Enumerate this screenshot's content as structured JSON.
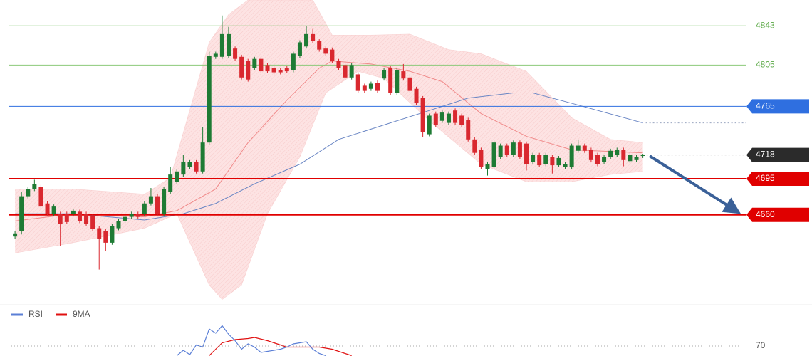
{
  "chart_data": [
    {
      "type": "candlestick",
      "xlim": [
        -1,
        113
      ],
      "ylim": [
        4575,
        4868
      ],
      "up_color": "#1e7b34",
      "down_color": "#d9282f",
      "ohlc": [
        [
          4639,
          4644,
          4637,
          4642
        ],
        [
          4644,
          4682,
          4641,
          4678
        ],
        [
          4678,
          4687,
          4676,
          4685
        ],
        [
          4685,
          4694,
          4683,
          4690
        ],
        [
          4687,
          4689,
          4666,
          4668
        ],
        [
          4671,
          4673,
          4659,
          4661
        ],
        [
          4661,
          4670,
          4659,
          4668
        ],
        [
          4661,
          4663,
          4630,
          4651
        ],
        [
          4661,
          4663,
          4651,
          4653
        ],
        [
          4661,
          4666,
          4659,
          4664
        ],
        [
          4663,
          4665,
          4652,
          4654
        ],
        [
          4661,
          4663,
          4649,
          4651
        ],
        [
          4659,
          4661,
          4644,
          4646
        ],
        [
          4647,
          4649,
          4607,
          4637
        ],
        [
          4644,
          4646,
          4625,
          4633
        ],
        [
          4633,
          4651,
          4631,
          4649
        ],
        [
          4647,
          4656,
          4645,
          4654
        ],
        [
          4654,
          4660,
          4652,
          4658
        ],
        [
          4658,
          4663,
          4656,
          4661
        ],
        [
          4661,
          4663,
          4656,
          4658
        ],
        [
          4661,
          4673,
          4659,
          4671
        ],
        [
          4671,
          4686,
          4669,
          4678
        ],
        [
          4678,
          4680,
          4659,
          4661
        ],
        [
          4661,
          4687,
          4659,
          4685
        ],
        [
          4682,
          4706,
          4680,
          4699
        ],
        [
          4692,
          4704,
          4690,
          4702
        ],
        [
          4699,
          4718,
          4697,
          4711
        ],
        [
          4706,
          4713,
          4704,
          4711
        ],
        [
          4711,
          4713,
          4700,
          4702
        ],
        [
          4702,
          4745,
          4700,
          4730
        ],
        [
          4730,
          4818,
          4728,
          4814
        ],
        [
          4813,
          4818,
          4811,
          4816
        ],
        [
          4813,
          4853,
          4811,
          4835
        ],
        [
          4814,
          4842,
          4812,
          4835
        ],
        [
          4821,
          4823,
          4809,
          4811
        ],
        [
          4813,
          4815,
          4791,
          4793
        ],
        [
          4809,
          4811,
          4789,
          4791
        ],
        [
          4802,
          4813,
          4800,
          4811
        ],
        [
          4811,
          4813,
          4797,
          4799
        ],
        [
          4805,
          4807,
          4797,
          4799
        ],
        [
          4802,
          4804,
          4796,
          4798
        ],
        [
          4800,
          4802,
          4796,
          4798
        ],
        [
          4802,
          4804,
          4797,
          4799
        ],
        [
          4800,
          4818,
          4798,
          4816
        ],
        [
          4814,
          4829,
          4812,
          4827
        ],
        [
          4823,
          4843,
          4821,
          4835
        ],
        [
          4835,
          4840,
          4826,
          4828
        ],
        [
          4828,
          4830,
          4818,
          4820
        ],
        [
          4821,
          4823,
          4814,
          4816
        ],
        [
          4820,
          4822,
          4807,
          4809
        ],
        [
          4809,
          4811,
          4800,
          4802
        ],
        [
          4805,
          4807,
          4791,
          4793
        ],
        [
          4793,
          4807,
          4791,
          4805
        ],
        [
          4796,
          4798,
          4778,
          4780
        ],
        [
          4785,
          4787,
          4778,
          4780
        ],
        [
          4782,
          4789,
          4780,
          4787
        ],
        [
          4788,
          4790,
          4778,
          4780
        ],
        [
          4792,
          4802,
          4790,
          4800
        ],
        [
          4802,
          4804,
          4776,
          4778
        ],
        [
          4778,
          4802,
          4776,
          4800
        ],
        [
          4799,
          4806,
          4790,
          4792
        ],
        [
          4793,
          4795,
          4778,
          4780
        ],
        [
          4782,
          4784,
          4766,
          4768
        ],
        [
          4773,
          4775,
          4735,
          4740
        ],
        [
          4738,
          4758,
          4736,
          4756
        ],
        [
          4758,
          4760,
          4745,
          4747
        ],
        [
          4751,
          4761,
          4749,
          4759
        ],
        [
          4749,
          4760,
          4747,
          4758
        ],
        [
          4761,
          4763,
          4747,
          4749
        ],
        [
          4756,
          4758,
          4745,
          4747
        ],
        [
          4752,
          4754,
          4731,
          4733
        ],
        [
          4733,
          4735,
          4718,
          4720
        ],
        [
          4723,
          4725,
          4704,
          4706
        ],
        [
          4704,
          4711,
          4698,
          4709
        ],
        [
          4706,
          4732,
          4704,
          4730
        ],
        [
          4716,
          4729,
          4714,
          4727
        ],
        [
          4727,
          4729,
          4716,
          4718
        ],
        [
          4718,
          4732,
          4716,
          4730
        ],
        [
          4730,
          4732,
          4714,
          4716
        ],
        [
          4729,
          4731,
          4703,
          4709
        ],
        [
          4711,
          4720,
          4709,
          4718
        ],
        [
          4718,
          4720,
          4706,
          4708
        ],
        [
          4709,
          4720,
          4707,
          4718
        ],
        [
          4716,
          4718,
          4700,
          4708
        ],
        [
          4708,
          4717,
          4706,
          4715
        ],
        [
          4706,
          4711,
          4704,
          4709
        ],
        [
          4706,
          4729,
          4704,
          4727
        ],
        [
          4722,
          4733,
          4720,
          4727
        ],
        [
          4727,
          4729,
          4720,
          4722
        ],
        [
          4723,
          4725,
          4711,
          4713
        ],
        [
          4718,
          4720,
          4707,
          4709
        ],
        [
          4711,
          4718,
          4709,
          4716
        ],
        [
          4716,
          4724,
          4714,
          4722
        ],
        [
          4718,
          4725,
          4716,
          4723
        ],
        [
          4723,
          4725,
          4707,
          4713
        ],
        [
          4712,
          4720,
          4710,
          4718
        ],
        [
          4713,
          4718,
          4711,
          4716
        ],
        [
          4717,
          4719,
          4715,
          4718
        ]
      ],
      "overlays": [
        {
          "name": "upper",
          "color": "#f4b4b4",
          "x": [
            0,
            9,
            20,
            24,
            30,
            33,
            36,
            42,
            46,
            49,
            55,
            61,
            67,
            72,
            79,
            86,
            92,
            97
          ],
          "values": [
            4685,
            4685,
            4680,
            4696,
            4827,
            4854,
            4868,
            4868,
            4868,
            4834,
            4834,
            4835,
            4820,
            4816,
            4799,
            4754,
            4733,
            4730
          ]
        },
        {
          "name": "lower",
          "color": "#f4b4b4",
          "x": [
            0,
            9,
            20,
            25,
            30,
            32,
            35,
            39,
            44,
            48,
            53,
            57,
            64,
            72,
            79,
            86,
            92,
            97
          ],
          "values": [
            4623,
            4633,
            4647,
            4661,
            4592,
            4578,
            4592,
            4661,
            4716,
            4778,
            4799,
            4792,
            4751,
            4709,
            4692,
            4692,
            4699,
            4702
          ]
        },
        {
          "name": "red-ma",
          "color": "#f08a8a",
          "x": [
            0,
            9,
            20,
            25,
            31,
            36,
            42,
            47,
            49,
            55,
            61,
            66,
            72,
            79,
            86,
            97
          ],
          "values": [
            4654,
            4661,
            4658,
            4664,
            4685,
            4730,
            4771,
            4802,
            4809,
            4806,
            4799,
            4789,
            4758,
            4736,
            4723,
            4720
          ]
        },
        {
          "name": "blue-ma",
          "color": "#6a86c4",
          "x": [
            0,
            9,
            20,
            26,
            31,
            37,
            44,
            50,
            57,
            64,
            70,
            77,
            80,
            86,
            97
          ],
          "values": [
            4661,
            4661,
            4655,
            4661,
            4671,
            4690,
            4709,
            4733,
            4747,
            4761,
            4773,
            4778,
            4778,
            4768,
            4749
          ]
        }
      ],
      "levels": [
        {
          "value": 4843,
          "color": "#8cc97a",
          "style": "text"
        },
        {
          "value": 4805,
          "color": "#8cc97a",
          "style": "text"
        },
        {
          "value": 4765,
          "color": "#2f6fe0",
          "style": "box"
        },
        {
          "value": 4695,
          "color": "#e00000",
          "style": "box"
        },
        {
          "value": 4660,
          "color": "#e00000",
          "style": "box"
        }
      ],
      "last_price": {
        "value": 4718,
        "color": "#2b2b2b"
      }
    },
    {
      "type": "line",
      "xlim": [
        -1,
        113
      ],
      "ylim": [
        60,
        100
      ],
      "yticks": [
        70
      ],
      "series": [
        {
          "name": "RSI",
          "color": "#5b7fd6",
          "x": [
            25,
            26,
            27,
            28,
            29,
            30,
            31,
            32,
            33,
            34,
            35,
            36,
            37,
            38,
            39,
            40,
            41,
            42,
            43,
            44,
            45,
            46,
            47,
            48
          ],
          "values": [
            61,
            66,
            62,
            71,
            69,
            86,
            82,
            89,
            81,
            75,
            67,
            72,
            69,
            64,
            65,
            66,
            67,
            69,
            72,
            73,
            74,
            67,
            63,
            61
          ]
        },
        {
          "name": "9MA",
          "color": "#e01010",
          "x": [
            30,
            31,
            32,
            34,
            36,
            37,
            39,
            41,
            42,
            44,
            46,
            47,
            49,
            52
          ],
          "values": [
            61,
            67,
            73,
            76,
            77,
            78,
            75,
            71,
            69,
            69,
            69,
            69,
            67,
            61
          ]
        }
      ]
    }
  ]
}
